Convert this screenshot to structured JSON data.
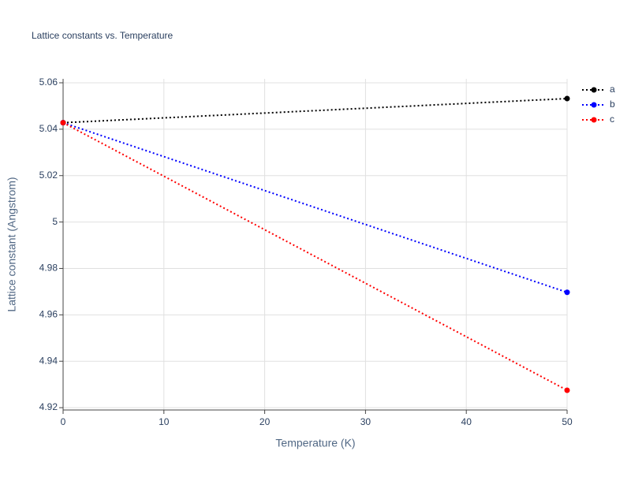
{
  "chart_data": {
    "type": "line",
    "title": "Lattice constants vs. Temperature",
    "x_label": "Temperature (K)",
    "y_label": "Lattice constant (Angstrom)",
    "x": [
      0,
      50
    ],
    "series": [
      {
        "name": "a",
        "color": "#000000",
        "values": [
          5.0428,
          5.0532
        ]
      },
      {
        "name": "b",
        "color": "#0000ff",
        "values": [
          5.0428,
          4.9697
        ]
      },
      {
        "name": "c",
        "color": "#ff0000",
        "values": [
          5.0428,
          4.9275
        ]
      }
    ],
    "xlim": [
      0,
      50
    ],
    "xticks": [
      0,
      10,
      20,
      30,
      40,
      50
    ],
    "ylim": [
      4.919,
      5.0617
    ],
    "yticks": [
      4.92,
      4.94,
      4.96,
      4.98,
      5,
      5.02,
      5.04,
      5.06
    ],
    "grid": true,
    "legend": "top-right"
  }
}
